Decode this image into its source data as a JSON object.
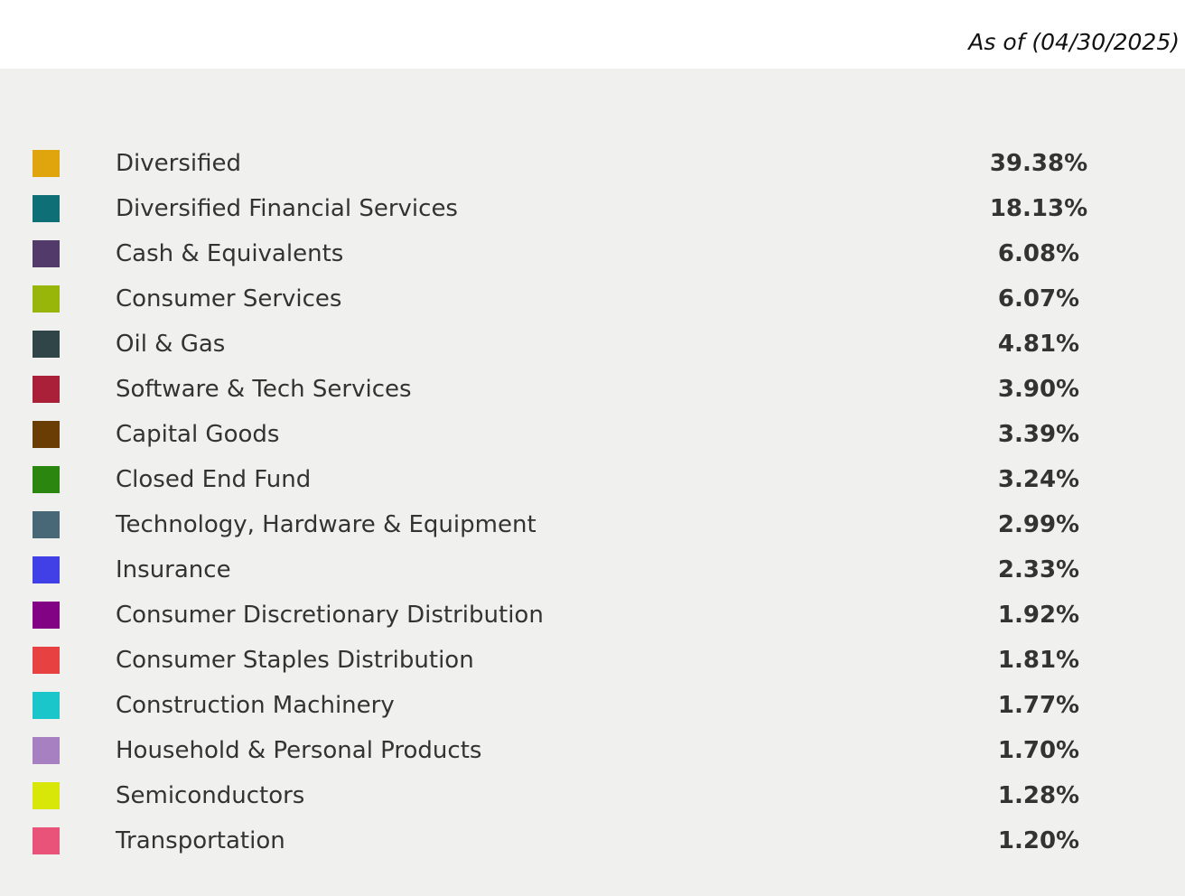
{
  "header": {
    "as_of": "As of (04/30/2025)"
  },
  "table": {
    "rows": [
      {
        "label": "Diversified",
        "value": "39.38%",
        "color": "#e0a40c"
      },
      {
        "label": "Diversified Financial Services",
        "value": "18.13%",
        "color": "#0e7076"
      },
      {
        "label": "Cash & Equivalents",
        "value": "6.08%",
        "color": "#523a6b"
      },
      {
        "label": "Consumer Services",
        "value": "6.07%",
        "color": "#98b50a"
      },
      {
        "label": "Oil & Gas",
        "value": "4.81%",
        "color": "#2f4547"
      },
      {
        "label": "Software & Tech Services",
        "value": "3.90%",
        "color": "#aa2038"
      },
      {
        "label": "Capital Goods",
        "value": "3.39%",
        "color": "#6a3d05"
      },
      {
        "label": "Closed End Fund",
        "value": "3.24%",
        "color": "#2b860f"
      },
      {
        "label": "Technology, Hardware & Equipment",
        "value": "2.99%",
        "color": "#486777"
      },
      {
        "label": "Insurance",
        "value": "2.33%",
        "color": "#4040e6"
      },
      {
        "label": "Consumer Discretionary Distribution",
        "value": "1.92%",
        "color": "#820383"
      },
      {
        "label": "Consumer Staples Distribution",
        "value": "1.81%",
        "color": "#e84142"
      },
      {
        "label": "Construction Machinery",
        "value": "1.77%",
        "color": "#1bc6cb"
      },
      {
        "label": "Household & Personal Products",
        "value": "1.70%",
        "color": "#a680c1"
      },
      {
        "label": "Semiconductors",
        "value": "1.28%",
        "color": "#d9e708"
      },
      {
        "label": "Transportation",
        "value": "1.20%",
        "color": "#e9537a"
      }
    ]
  }
}
